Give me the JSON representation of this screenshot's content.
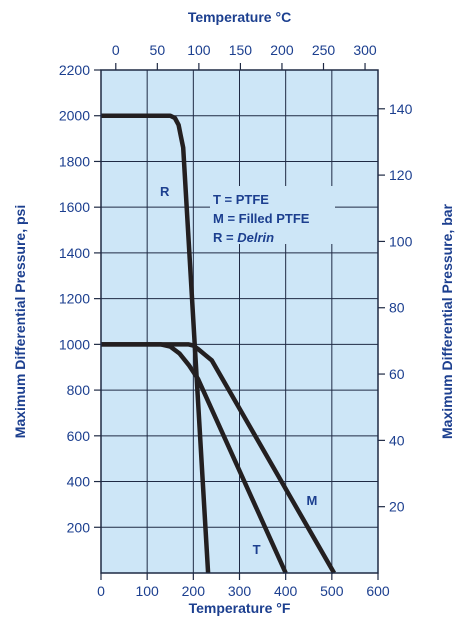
{
  "colors": {
    "plot_background": "#cde6f7",
    "gridline": "#1f2a44",
    "curve": "#231f20",
    "text": "#1c3f8f"
  },
  "chart_data": {
    "type": "line",
    "x_bottom": {
      "label": "Temperature °F",
      "range": [
        0,
        600
      ],
      "ticks": [
        0,
        100,
        200,
        300,
        400,
        500,
        600
      ]
    },
    "x_top": {
      "label": "Temperature °C",
      "range": [
        -17.8,
        315.6
      ],
      "ticks": [
        0,
        50,
        100,
        150,
        200,
        250,
        300
      ]
    },
    "y_left": {
      "label": "Maximum Differential Pressure, psi",
      "range": [
        0,
        2200
      ],
      "ticks": [
        200,
        400,
        600,
        800,
        1000,
        1200,
        1400,
        1600,
        1800,
        2000,
        2200
      ]
    },
    "y_right": {
      "label": "Maximum Differential Pressure, bar",
      "range": [
        0,
        151.7
      ],
      "ticks": [
        20,
        40,
        60,
        80,
        100,
        120,
        140
      ]
    },
    "grid": true,
    "series": [
      {
        "name": "R",
        "x": [
          0,
          150,
          160,
          168,
          172,
          178,
          232
        ],
        "y": [
          2000,
          2000,
          1990,
          1960,
          1920,
          1860,
          0
        ]
      },
      {
        "name": "T",
        "x": [
          0,
          130,
          150,
          170,
          190,
          210,
          400
        ],
        "y": [
          1000,
          1000,
          990,
          960,
          910,
          850,
          0
        ]
      },
      {
        "name": "M",
        "x": [
          0,
          190,
          200,
          210,
          225,
          240,
          505
        ],
        "y": [
          1000,
          1000,
          995,
          980,
          955,
          930,
          0
        ]
      }
    ],
    "annotations": [
      {
        "text": "R",
        "x": 138,
        "y": 1670
      },
      {
        "text": "T",
        "x": 337,
        "y": 106
      },
      {
        "text": "M",
        "x": 457,
        "y": 319
      }
    ],
    "legend": {
      "position": "upper-right-inside",
      "entries": [
        "T = PTFE",
        "M = Filled PTFE",
        "R = Delrin"
      ]
    }
  }
}
